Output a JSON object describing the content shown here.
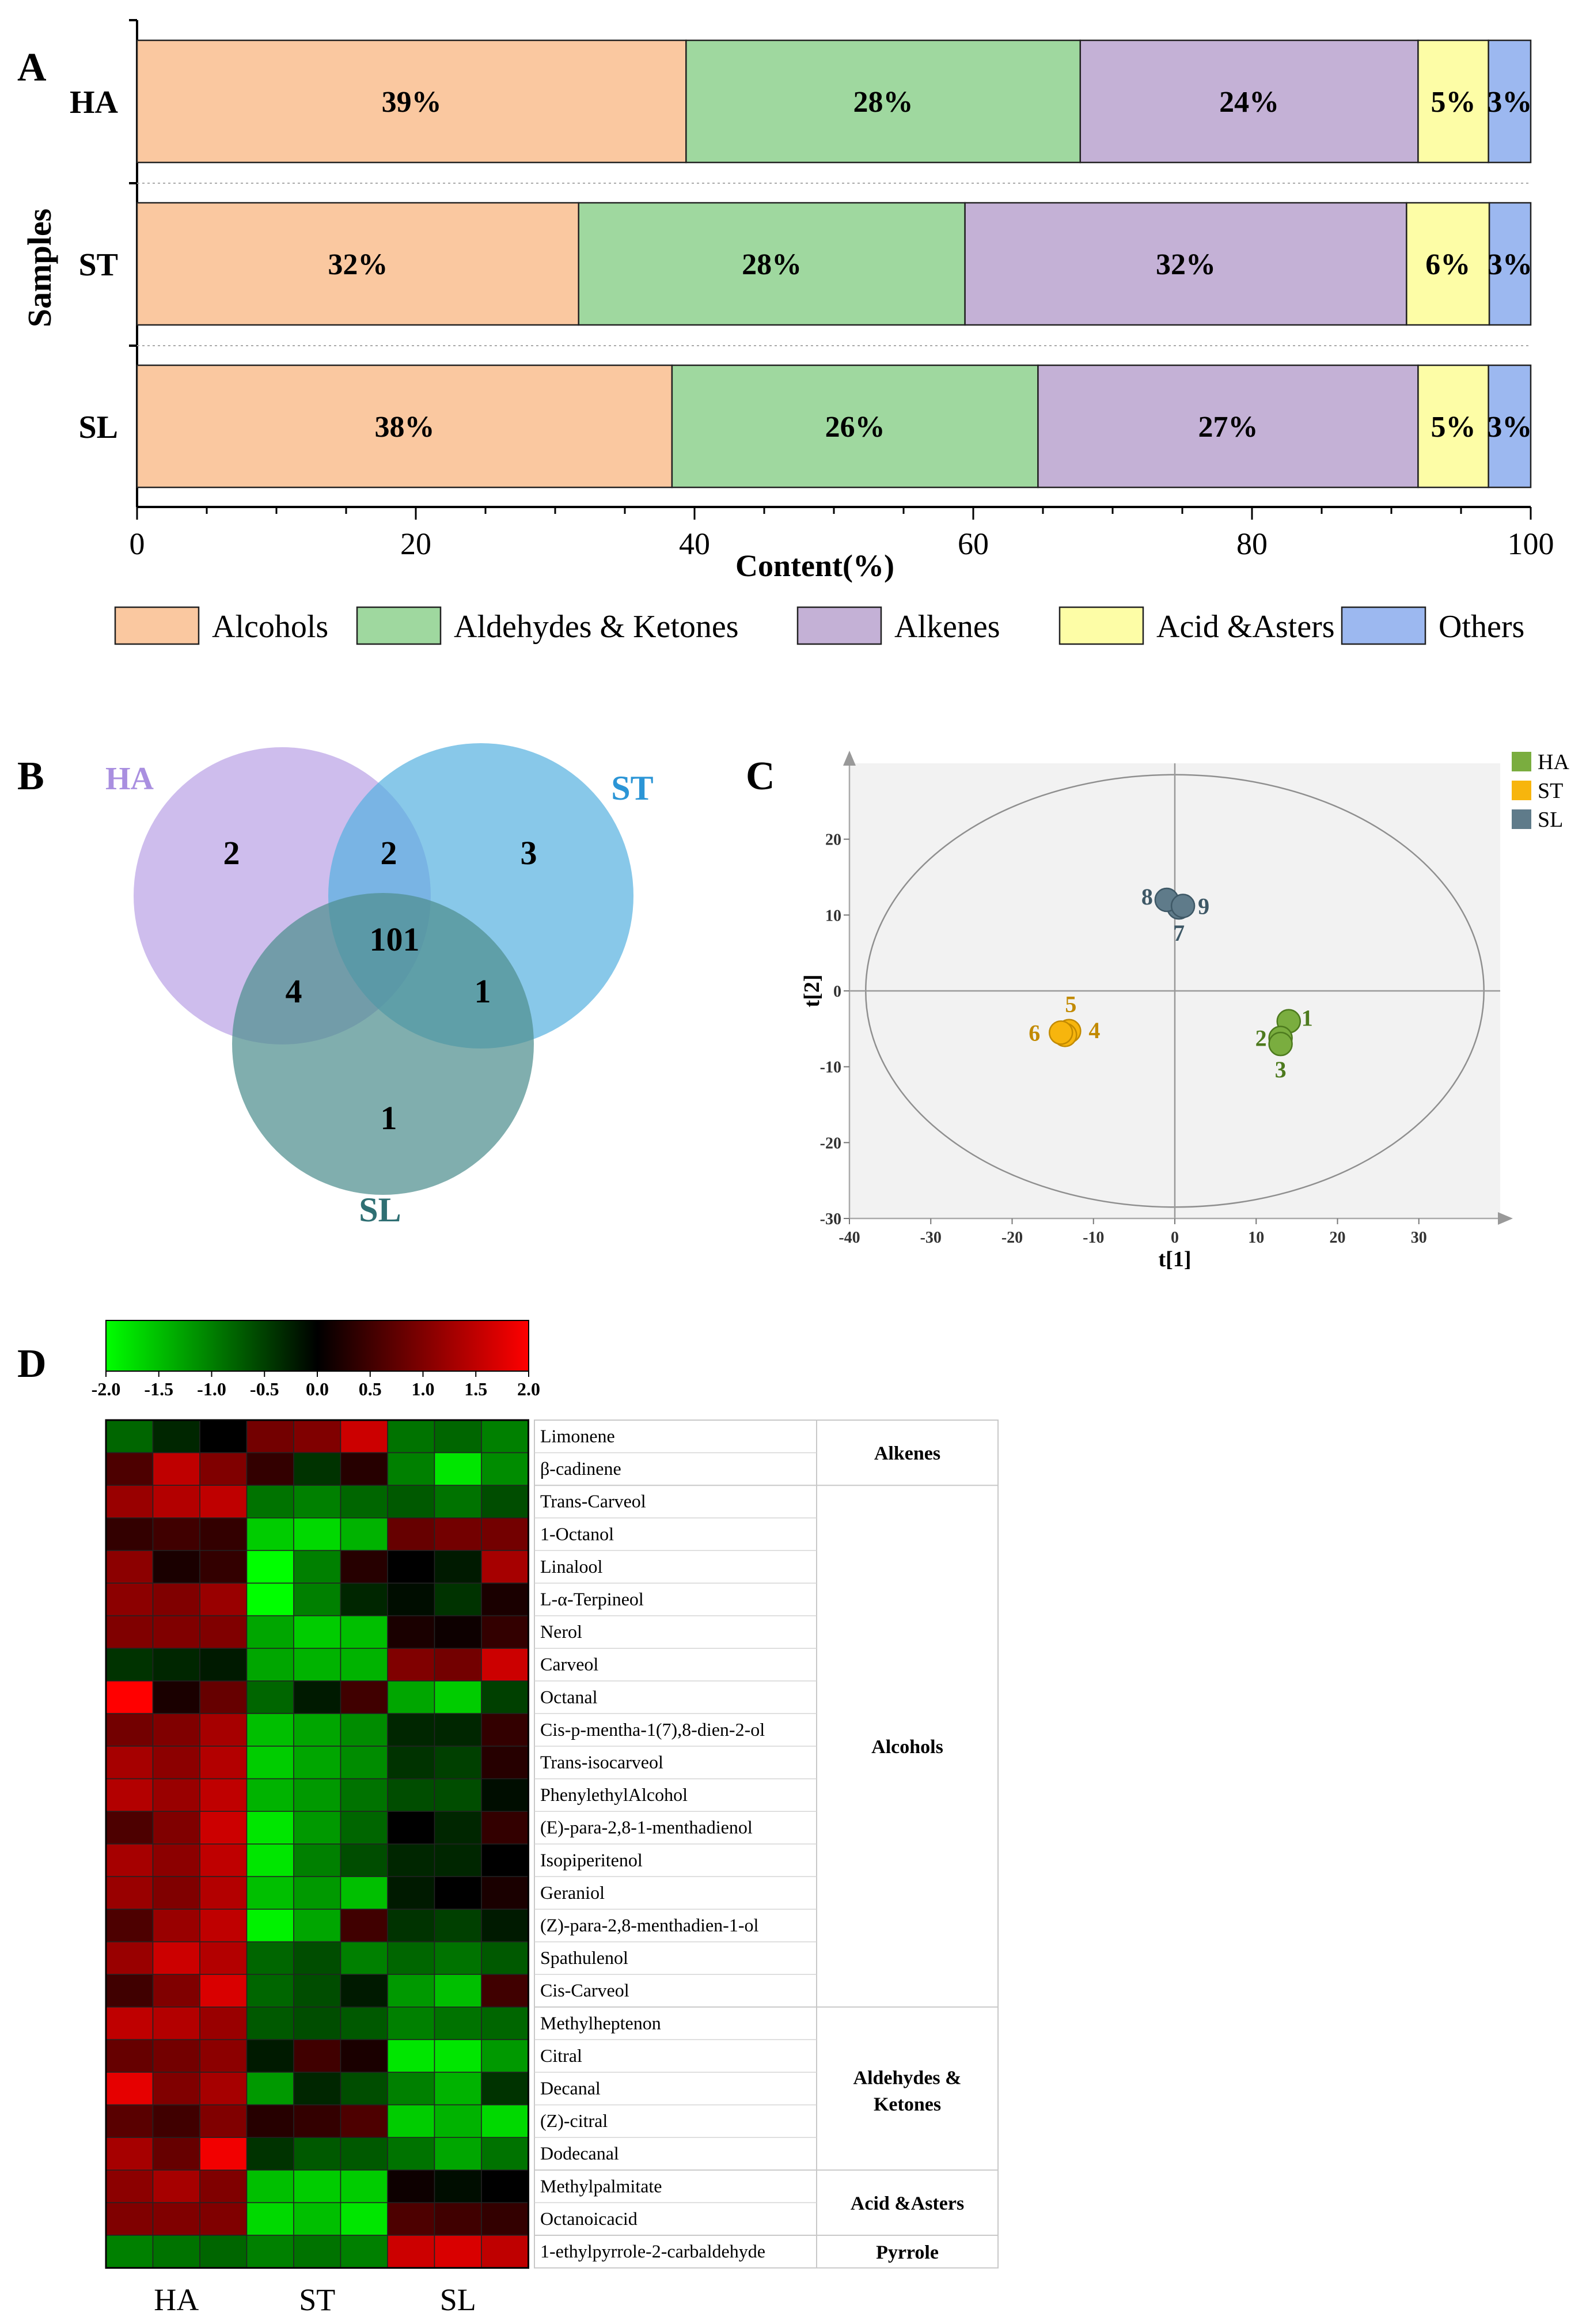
{
  "panels": {
    "a": {
      "letter": "A"
    },
    "b": {
      "letter": "B"
    },
    "c": {
      "letter": "C"
    },
    "d": {
      "letter": "D"
    }
  },
  "colors": {
    "alcohols": "#fac8a0",
    "aldehydes": "#9fd89f",
    "alkenes": "#c4b1d6",
    "acids": "#fdfda6",
    "others": "#9cb8f0",
    "venn_ha": "#b9a1e6",
    "venn_st": "#56b0e0",
    "venn_sl": "#4f8f8f",
    "pca_ha": "#7aad3f",
    "pca_st": "#f7b50d",
    "pca_sl": "#5f7b8a"
  },
  "chart_data": [
    {
      "type": "bar",
      "orientation": "horizontal-stacked",
      "categories": [
        "HA",
        "ST",
        "SL"
      ],
      "series": [
        {
          "name": "Alcohols",
          "values": [
            39,
            32,
            38
          ],
          "labels": [
            "39%",
            "32%",
            "38%"
          ]
        },
        {
          "name": "Aldehydes & Ketones",
          "values": [
            28,
            28,
            26
          ],
          "labels": [
            "28%",
            "28%",
            "26%"
          ]
        },
        {
          "name": "Alkenes",
          "values": [
            24,
            32,
            27
          ],
          "labels": [
            "24%",
            "32%",
            "27%"
          ]
        },
        {
          "name": "Acid &Asters",
          "values": [
            5,
            6,
            5
          ],
          "labels": [
            "5%",
            "6%",
            "5%"
          ]
        },
        {
          "name": "Others",
          "values": [
            3,
            3,
            3
          ],
          "labels": [
            "3%",
            "3%",
            "3%"
          ]
        }
      ],
      "xlabel": "Content(%)",
      "ylabel": "Samples",
      "xlim": [
        0,
        100
      ],
      "xticks": [
        0,
        20,
        40,
        60,
        80,
        100
      ],
      "legend_position": "bottom"
    },
    {
      "type": "venn",
      "sets": [
        "HA",
        "ST",
        "SL"
      ],
      "regions": {
        "HA_only": 2,
        "ST_only": 3,
        "SL_only": 1,
        "HA_ST": 2,
        "HA_SL": 4,
        "ST_SL": 1,
        "HA_ST_SL": 101
      }
    },
    {
      "type": "scatter",
      "xlabel": "t[1]",
      "ylabel": "t[2]",
      "xlim": [
        -40,
        40
      ],
      "ylim": [
        -30,
        30
      ],
      "xticks": [
        -40,
        -30,
        -20,
        -10,
        0,
        10,
        20,
        30
      ],
      "yticks": [
        -30,
        -20,
        -10,
        0,
        10,
        20
      ],
      "ellipse": {
        "rx": 38,
        "ry": 28.5
      },
      "legend_position": "top-right",
      "series": [
        {
          "name": "HA",
          "points": [
            {
              "x": 14,
              "y": -4,
              "label": "1"
            },
            {
              "x": 13,
              "y": -6.2,
              "label": "2"
            },
            {
              "x": 13,
              "y": -7,
              "label": "3"
            }
          ]
        },
        {
          "name": "ST",
          "points": [
            {
              "x": -13,
              "y": -5.3,
              "label": "4"
            },
            {
              "x": -13.5,
              "y": -5.8,
              "label": "5"
            },
            {
              "x": -14,
              "y": -5.5,
              "label": "6"
            }
          ]
        },
        {
          "name": "SL",
          "points": [
            {
              "x": 0.5,
              "y": 11,
              "label": "7"
            },
            {
              "x": -1,
              "y": 12,
              "label": "8"
            },
            {
              "x": 1,
              "y": 11.2,
              "label": "9"
            }
          ]
        }
      ]
    },
    {
      "type": "heatmap",
      "scale_min": -2,
      "scale_max": 2,
      "scale_ticks": [
        "-2.0",
        "-1.5",
        "-1.0",
        "-0.5",
        "0.0",
        "0.5",
        "1.0",
        "1.5",
        "2.0"
      ],
      "groups": [
        "HA",
        "ST",
        "SL"
      ],
      "rows": [
        "Limonene",
        "β-cadinene",
        "Trans-Carveol",
        "1-Octanol",
        "Linalool",
        "L-α-Terpineol",
        "Nerol",
        "Carveol",
        "Octanal",
        "Cis-p-mentha-1(7),8-dien-2-ol",
        "Trans-isocarveol",
        "PhenylethylAlcohol",
        "(E)-para-2,8-1-menthadienol",
        "Isopiperitenol",
        "Geraniol",
        "(Z)-para-2,8-menthadien-1-ol",
        "Spathulenol",
        "Cis-Carveol",
        "Methylheptenon",
        "Citral",
        "Decanal",
        "(Z)-citral",
        "Dodecanal",
        "Methylpalmitate",
        "Octanoicacid",
        "1-ethylpyrrole-2-carbaldehyde"
      ],
      "classes": [
        {
          "label": "Alkenes",
          "start": 0,
          "count": 2
        },
        {
          "label": "Alcohols",
          "start": 2,
          "count": 16
        },
        {
          "label": "Aldehydes & Ketones",
          "start": 18,
          "count": 5
        },
        {
          "label": "Acid &Asters",
          "start": 23,
          "count": 2
        },
        {
          "label": "Pyrrole",
          "start": 25,
          "count": 1
        }
      ],
      "values": [
        [
          -0.8,
          -0.3,
          0.0,
          0.9,
          1.0,
          1.6,
          -0.9,
          -0.8,
          -1.0
        ],
        [
          0.6,
          1.5,
          1.0,
          0.4,
          -0.4,
          0.3,
          -1.0,
          -1.8,
          -1.1
        ],
        [
          1.2,
          1.4,
          1.5,
          -0.9,
          -1.0,
          -0.8,
          -0.7,
          -0.9,
          -0.6
        ],
        [
          0.4,
          0.5,
          0.4,
          -1.6,
          -1.7,
          -1.4,
          0.8,
          0.9,
          0.9
        ],
        [
          1.1,
          0.2,
          0.4,
          -2.0,
          -1.0,
          0.3,
          0.0,
          -0.2,
          1.3
        ],
        [
          1.1,
          1.0,
          1.2,
          -2.0,
          -1.0,
          -0.3,
          -0.1,
          -0.4,
          0.2
        ],
        [
          1.0,
          1.0,
          1.0,
          -1.3,
          -1.6,
          -1.5,
          0.2,
          0.1,
          0.4
        ],
        [
          -0.4,
          -0.3,
          -0.2,
          -1.3,
          -1.4,
          -1.4,
          1.0,
          0.9,
          1.6
        ],
        [
          2.0,
          0.2,
          0.8,
          -0.8,
          -0.2,
          0.5,
          -1.3,
          -1.6,
          -0.5
        ],
        [
          0.9,
          1.0,
          1.3,
          -1.5,
          -1.3,
          -1.1,
          -0.3,
          -0.3,
          0.4
        ],
        [
          1.3,
          1.1,
          1.4,
          -1.6,
          -1.3,
          -1.1,
          -0.4,
          -0.5,
          0.3
        ],
        [
          1.4,
          1.2,
          1.5,
          -1.4,
          -1.2,
          -0.9,
          -0.6,
          -0.6,
          -0.1
        ],
        [
          0.6,
          1.0,
          1.6,
          -1.8,
          -1.2,
          -0.8,
          0.0,
          -0.3,
          0.4
        ],
        [
          1.3,
          1.1,
          1.5,
          -1.8,
          -1.0,
          -0.6,
          -0.3,
          -0.3,
          0.0
        ],
        [
          1.2,
          1.0,
          1.4,
          -1.5,
          -1.2,
          -1.5,
          -0.2,
          0.0,
          0.2
        ],
        [
          0.6,
          1.2,
          1.5,
          -1.9,
          -1.3,
          0.5,
          -0.4,
          -0.5,
          -0.2
        ],
        [
          1.2,
          1.6,
          1.4,
          -0.8,
          -0.6,
          -1.0,
          -0.8,
          -0.9,
          -0.7
        ],
        [
          0.5,
          1.0,
          1.7,
          -0.8,
          -0.6,
          -0.2,
          -1.2,
          -1.5,
          0.5
        ],
        [
          1.5,
          1.4,
          1.2,
          -0.7,
          -0.6,
          -0.7,
          -1.0,
          -0.9,
          -0.8
        ],
        [
          0.8,
          0.9,
          1.1,
          -0.2,
          0.5,
          0.2,
          -1.8,
          -1.8,
          -1.2
        ],
        [
          1.8,
          1.0,
          1.3,
          -1.2,
          -0.3,
          -0.6,
          -1.0,
          -1.4,
          -0.4
        ],
        [
          0.7,
          0.5,
          1.0,
          0.3,
          0.4,
          0.6,
          -1.6,
          -1.4,
          -1.7
        ],
        [
          1.3,
          0.8,
          1.9,
          -0.4,
          -0.7,
          -0.7,
          -0.9,
          -1.3,
          -0.9
        ],
        [
          1.1,
          1.3,
          1.0,
          -1.5,
          -1.6,
          -1.6,
          0.1,
          -0.1,
          0.0
        ],
        [
          1.0,
          1.0,
          1.0,
          -1.7,
          -1.5,
          -1.8,
          0.6,
          0.5,
          0.4
        ],
        [
          -1.0,
          -0.9,
          -0.8,
          -1.0,
          -0.9,
          -1.0,
          1.6,
          1.7,
          1.5
        ]
      ]
    }
  ]
}
